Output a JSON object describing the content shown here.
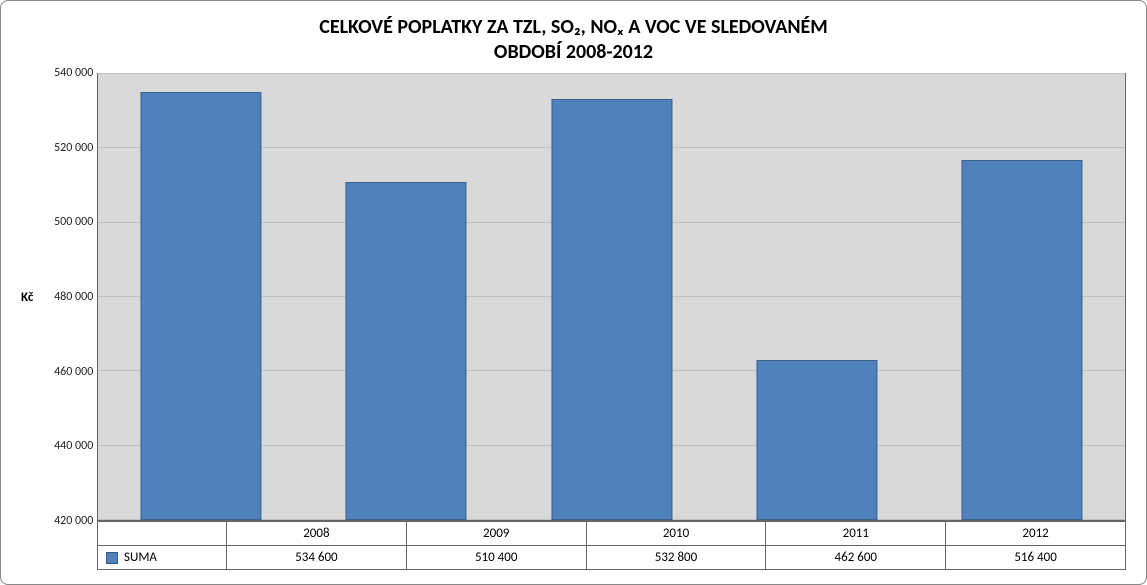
{
  "chart": {
    "type": "bar",
    "title_line1": "CELKOVÉ POPLATKY ZA TZL, SO₂, NOₓ A VOC VE SLEDOVANÉM",
    "title_line2": "OBDOBÍ 2008-2012",
    "title_fontsize": 20,
    "title_color": "#000000",
    "ylabel": "Kč",
    "ylabel_fontsize": 13,
    "ylim_min": 420000,
    "ylim_max": 540000,
    "ytick_step": 20000,
    "yticks": [
      "420 000",
      "440 000",
      "460 000",
      "480 000",
      "500 000",
      "520 000",
      "540 000"
    ],
    "categories": [
      "2008",
      "2009",
      "2010",
      "2011",
      "2012"
    ],
    "values": [
      534600,
      510400,
      532800,
      462600,
      516400
    ],
    "value_labels": [
      "534 600",
      "510 400",
      "532 800",
      "462 600",
      "516 400"
    ],
    "bar_color": "#4F81BD",
    "bar_width_pct": 58,
    "plot_background": "#D9D9D9",
    "gridline_color": "#BFBFBF",
    "axis_border_color": "#666666",
    "tick_fontsize": 12,
    "table_fontsize": 13,
    "legend": {
      "label": "SUMA",
      "swatch_color": "#4F81BD"
    },
    "container_border_color": "#888888",
    "container_radius": 8,
    "container_background": "#FFFFFF"
  }
}
